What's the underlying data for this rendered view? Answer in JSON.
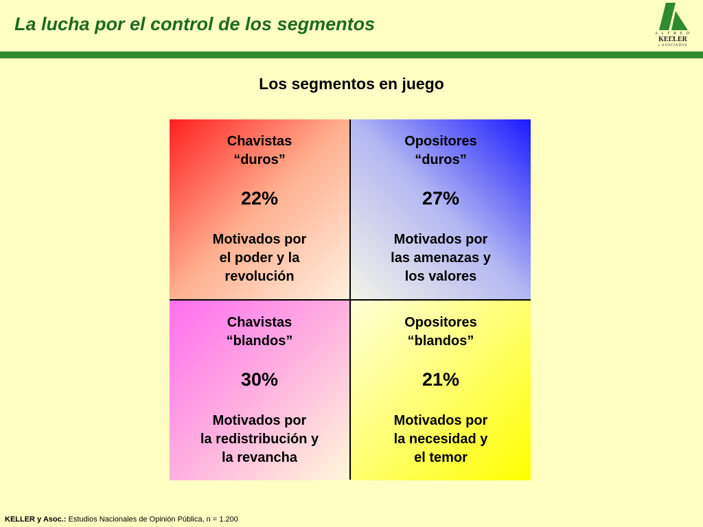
{
  "header": {
    "title": "La lucha por el control de los segmentos",
    "logo": {
      "line1": "A L F R E D O",
      "line2": "KELLER",
      "line3": "y ASOCIADOS",
      "icon": "keller-logo-icon",
      "color": "#2F8A2F"
    }
  },
  "subtitle": "Los segmentos en juego",
  "segments": [
    {
      "name": [
        "Chavistas",
        "“duros”"
      ],
      "percent": "22%",
      "motivation": [
        "Motivados por",
        "el poder y la",
        "revolución"
      ],
      "color": "#FF2020"
    },
    {
      "name": [
        "Opositores",
        "“duros”"
      ],
      "percent": "27%",
      "motivation": [
        "Motivados por",
        "las amenazas y",
        "los valores"
      ],
      "color": "#1A1AFF"
    },
    {
      "name": [
        "Chavistas",
        "“blandos”"
      ],
      "percent": "30%",
      "motivation": [
        "Motivados por",
        "la redistribución y",
        "la revancha"
      ],
      "color": "#FF6EF0"
    },
    {
      "name": [
        "Opositores",
        "“blandos”"
      ],
      "percent": "21%",
      "motivation": [
        "Motivados por",
        "la necesidad y",
        "el temor"
      ],
      "color": "#FFFF00"
    }
  ],
  "footer": {
    "source_label": "KELLER y Asoc.:",
    "source_text": " Estudios Nacionales de Opinión Pública, n = 1.200"
  },
  "colors": {
    "background": "#FFFFC4",
    "title": "#1E6A1E",
    "rule": "#2F8A2F"
  }
}
